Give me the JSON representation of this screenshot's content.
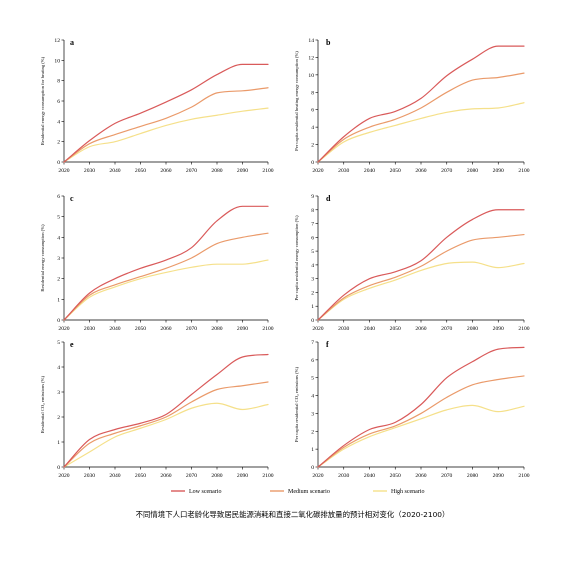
{
  "caption": "不同情境下人口老龄化导致居民能源消耗和直接二氧化碳排放量的预计相对变化（2020-2100）",
  "colors": {
    "low": "#d95a5a",
    "medium": "#ea9a6a",
    "high": "#f5e08a"
  },
  "legend": [
    {
      "key": "low",
      "label": "Low scenario"
    },
    {
      "key": "medium",
      "label": "Medium scenario"
    },
    {
      "key": "high",
      "label": "High scenario"
    }
  ],
  "chart_data": [
    {
      "type": "line",
      "panel": "a",
      "ylabel": "Residential energy consumption for heating (%)",
      "x": [
        2020,
        2030,
        2040,
        2050,
        2060,
        2070,
        2080,
        2090,
        2100
      ],
      "xlim": [
        2020,
        2100
      ],
      "ylim": [
        0,
        12
      ],
      "yticks": [
        0,
        2,
        4,
        6,
        8,
        10,
        12
      ],
      "series": [
        {
          "name": "Low scenario",
          "key": "low",
          "values": [
            0,
            2.1,
            3.8,
            4.8,
            5.9,
            7.1,
            8.6,
            9.6,
            9.6
          ]
        },
        {
          "name": "Medium scenario",
          "key": "medium",
          "values": [
            0,
            1.8,
            2.7,
            3.5,
            4.3,
            5.4,
            6.8,
            7.0,
            7.3
          ]
        },
        {
          "name": "High scenario",
          "key": "high",
          "values": [
            0,
            1.5,
            2.0,
            2.8,
            3.6,
            4.2,
            4.6,
            5.0,
            5.3
          ]
        }
      ]
    },
    {
      "type": "line",
      "panel": "b",
      "ylabel": "Per capita residential heating energy consumption (%)",
      "x": [
        2020,
        2030,
        2040,
        2050,
        2060,
        2070,
        2080,
        2090,
        2100
      ],
      "xlim": [
        2020,
        2100
      ],
      "ylim": [
        0,
        14
      ],
      "yticks": [
        0,
        2,
        4,
        6,
        8,
        10,
        12,
        14
      ],
      "series": [
        {
          "name": "Low scenario",
          "key": "low",
          "values": [
            0,
            2.9,
            5.0,
            5.8,
            7.3,
            9.9,
            11.8,
            13.3,
            13.3
          ]
        },
        {
          "name": "Medium scenario",
          "key": "medium",
          "values": [
            0,
            2.6,
            4.0,
            4.9,
            6.2,
            8.0,
            9.4,
            9.7,
            10.2
          ]
        },
        {
          "name": "High scenario",
          "key": "high",
          "values": [
            0,
            2.3,
            3.4,
            4.2,
            5.0,
            5.7,
            6.1,
            6.2,
            6.8
          ]
        }
      ]
    },
    {
      "type": "line",
      "panel": "c",
      "ylabel": "Residential energy consumption (%)",
      "x": [
        2020,
        2030,
        2040,
        2050,
        2060,
        2070,
        2080,
        2090,
        2100
      ],
      "xlim": [
        2020,
        2100
      ],
      "ylim": [
        0,
        6
      ],
      "yticks": [
        0,
        1,
        2,
        3,
        4,
        5,
        6
      ],
      "series": [
        {
          "name": "Low scenario",
          "key": "low",
          "values": [
            0,
            1.3,
            2.0,
            2.5,
            2.9,
            3.5,
            4.8,
            5.5,
            5.5
          ]
        },
        {
          "name": "Medium scenario",
          "key": "medium",
          "values": [
            0,
            1.2,
            1.7,
            2.1,
            2.5,
            3.0,
            3.7,
            4.0,
            4.2
          ]
        },
        {
          "name": "High scenario",
          "key": "high",
          "values": [
            0,
            1.1,
            1.6,
            2.0,
            2.3,
            2.55,
            2.7,
            2.7,
            2.9
          ]
        }
      ]
    },
    {
      "type": "line",
      "panel": "d",
      "ylabel": "Per capita residential energy consumption (%)",
      "x": [
        2020,
        2030,
        2040,
        2050,
        2060,
        2070,
        2080,
        2090,
        2100
      ],
      "xlim": [
        2020,
        2100
      ],
      "ylim": [
        0,
        9
      ],
      "yticks": [
        0,
        1,
        2,
        3,
        4,
        5,
        6,
        7,
        8,
        9
      ],
      "series": [
        {
          "name": "Low scenario",
          "key": "low",
          "values": [
            0,
            1.8,
            3.0,
            3.5,
            4.3,
            6.0,
            7.3,
            8.0,
            8.0
          ]
        },
        {
          "name": "Medium scenario",
          "key": "medium",
          "values": [
            0,
            1.6,
            2.5,
            3.1,
            3.9,
            5.0,
            5.8,
            6.0,
            6.2
          ]
        },
        {
          "name": "High scenario",
          "key": "high",
          "values": [
            0,
            1.5,
            2.3,
            2.9,
            3.6,
            4.1,
            4.2,
            3.8,
            4.1
          ]
        }
      ]
    },
    {
      "type": "line",
      "panel": "e",
      "ylabel": "Residential CO₂ emissions (%)",
      "x": [
        2020,
        2030,
        2040,
        2050,
        2060,
        2070,
        2080,
        2090,
        2100
      ],
      "xlim": [
        2020,
        2100
      ],
      "ylim": [
        0,
        5
      ],
      "yticks": [
        0,
        1,
        2,
        3,
        4,
        5
      ],
      "series": [
        {
          "name": "Low scenario",
          "key": "low",
          "values": [
            0,
            1.1,
            1.5,
            1.75,
            2.1,
            2.9,
            3.7,
            4.4,
            4.5
          ]
        },
        {
          "name": "Medium scenario",
          "key": "medium",
          "values": [
            0,
            0.95,
            1.35,
            1.65,
            2.0,
            2.6,
            3.1,
            3.25,
            3.4
          ]
        },
        {
          "name": "High scenario",
          "key": "high",
          "values": [
            0,
            0.6,
            1.2,
            1.55,
            1.9,
            2.35,
            2.55,
            2.3,
            2.5
          ]
        }
      ]
    },
    {
      "type": "line",
      "panel": "f",
      "ylabel": "Per capita residential CO₂ emissions (%)",
      "x": [
        2020,
        2030,
        2040,
        2050,
        2060,
        2070,
        2080,
        2090,
        2100
      ],
      "xlim": [
        2020,
        2100
      ],
      "ylim": [
        0,
        7
      ],
      "yticks": [
        0,
        1,
        2,
        3,
        4,
        5,
        6,
        7
      ],
      "series": [
        {
          "name": "Low scenario",
          "key": "low",
          "values": [
            0,
            1.2,
            2.1,
            2.5,
            3.5,
            5.0,
            5.9,
            6.6,
            6.7
          ]
        },
        {
          "name": "Medium scenario",
          "key": "medium",
          "values": [
            0,
            1.1,
            1.85,
            2.3,
            3.0,
            3.9,
            4.6,
            4.9,
            5.1
          ]
        },
        {
          "name": "High scenario",
          "key": "high",
          "values": [
            0,
            1.0,
            1.7,
            2.2,
            2.7,
            3.2,
            3.45,
            3.1,
            3.4
          ]
        }
      ]
    }
  ]
}
